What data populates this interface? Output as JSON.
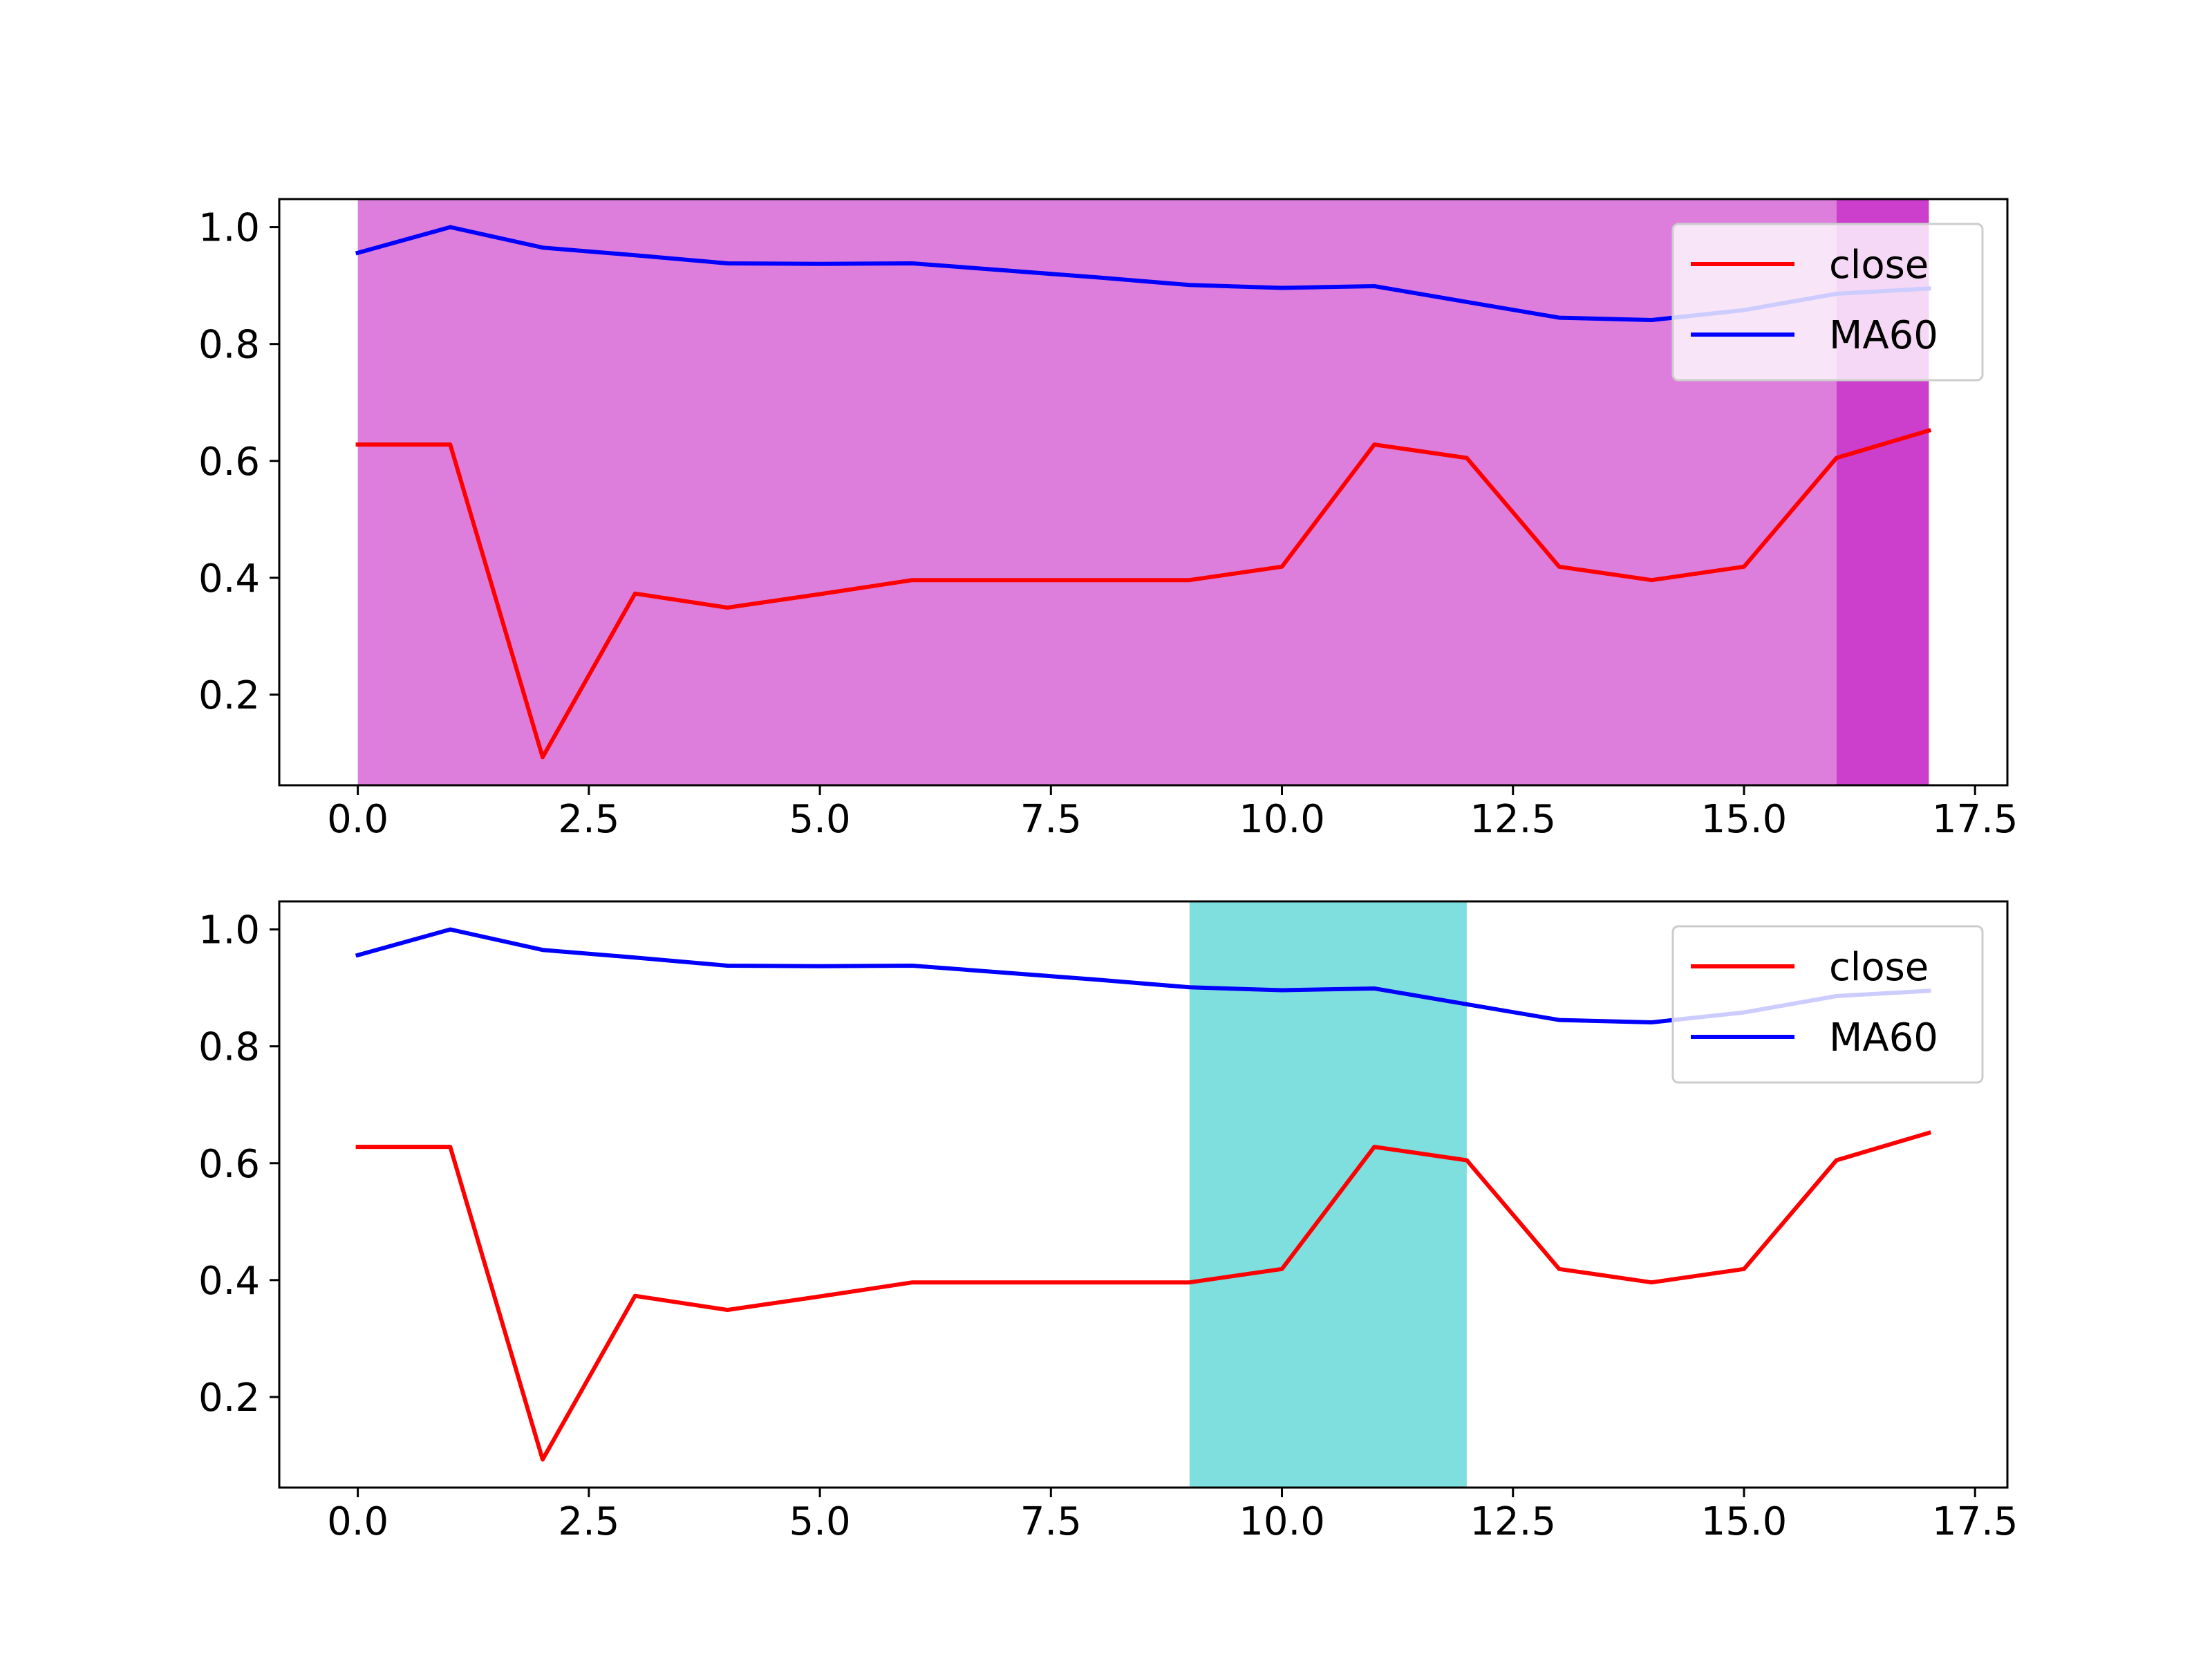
{
  "figure": {
    "background": "#ffffff"
  },
  "chart_data": [
    {
      "type": "line",
      "x": [
        0,
        1,
        2,
        3,
        4,
        5,
        6,
        7,
        8,
        9,
        10,
        11,
        12,
        13,
        14,
        15,
        16,
        17
      ],
      "series": [
        {
          "name": "close",
          "color": "#ff0000",
          "values": [
            0.628,
            0.628,
            0.093,
            0.373,
            0.349,
            0.372,
            0.396,
            0.396,
            0.396,
            0.396,
            0.419,
            0.628,
            0.605,
            0.419,
            0.396,
            0.419,
            0.605,
            0.652
          ]
        },
        {
          "name": "MA60",
          "color": "#0000ff",
          "values": [
            0.956,
            1.0,
            0.965,
            0.952,
            0.938,
            0.937,
            0.938,
            0.926,
            0.914,
            0.901,
            0.896,
            0.899,
            0.872,
            0.845,
            0.841,
            0.858,
            0.886,
            0.895
          ]
        }
      ],
      "shaded_regions": [
        {
          "x_start": 0,
          "x_end": 16,
          "color": "#dd7edd"
        },
        {
          "x_start": 16,
          "x_end": 17,
          "color": "#cc3fcc"
        }
      ],
      "xlim": [
        -0.85,
        17.85
      ],
      "ylim": [
        0.045,
        1.048
      ],
      "xticks": [
        "0.0",
        "2.5",
        "5.0",
        "7.5",
        "10.0",
        "12.5",
        "15.0",
        "17.5"
      ],
      "yticks": [
        "0.2",
        "0.4",
        "0.6",
        "0.8",
        "1.0"
      ],
      "legend": {
        "placement": "upper right",
        "entries": [
          "close",
          "MA60"
        ]
      },
      "grid": false
    },
    {
      "type": "line",
      "x": [
        0,
        1,
        2,
        3,
        4,
        5,
        6,
        7,
        8,
        9,
        10,
        11,
        12,
        13,
        14,
        15,
        16,
        17
      ],
      "series": [
        {
          "name": "close",
          "color": "#ff0000",
          "values": [
            0.628,
            0.628,
            0.093,
            0.373,
            0.349,
            0.372,
            0.396,
            0.396,
            0.396,
            0.396,
            0.419,
            0.628,
            0.605,
            0.419,
            0.396,
            0.419,
            0.605,
            0.652
          ]
        },
        {
          "name": "MA60",
          "color": "#0000ff",
          "values": [
            0.956,
            1.0,
            0.965,
            0.952,
            0.938,
            0.937,
            0.938,
            0.926,
            0.914,
            0.901,
            0.896,
            0.899,
            0.872,
            0.845,
            0.841,
            0.858,
            0.886,
            0.895
          ]
        }
      ],
      "shaded_regions": [
        {
          "x_start": 9,
          "x_end": 12,
          "color": "#7fdfdf"
        }
      ],
      "xlim": [
        -0.85,
        17.85
      ],
      "ylim": [
        0.045,
        1.048
      ],
      "xticks": [
        "0.0",
        "2.5",
        "5.0",
        "7.5",
        "10.0",
        "12.5",
        "15.0",
        "17.5"
      ],
      "yticks": [
        "0.2",
        "0.4",
        "0.6",
        "0.8",
        "1.0"
      ],
      "legend": {
        "placement": "upper right",
        "entries": [
          "close",
          "MA60"
        ]
      },
      "grid": false
    }
  ]
}
